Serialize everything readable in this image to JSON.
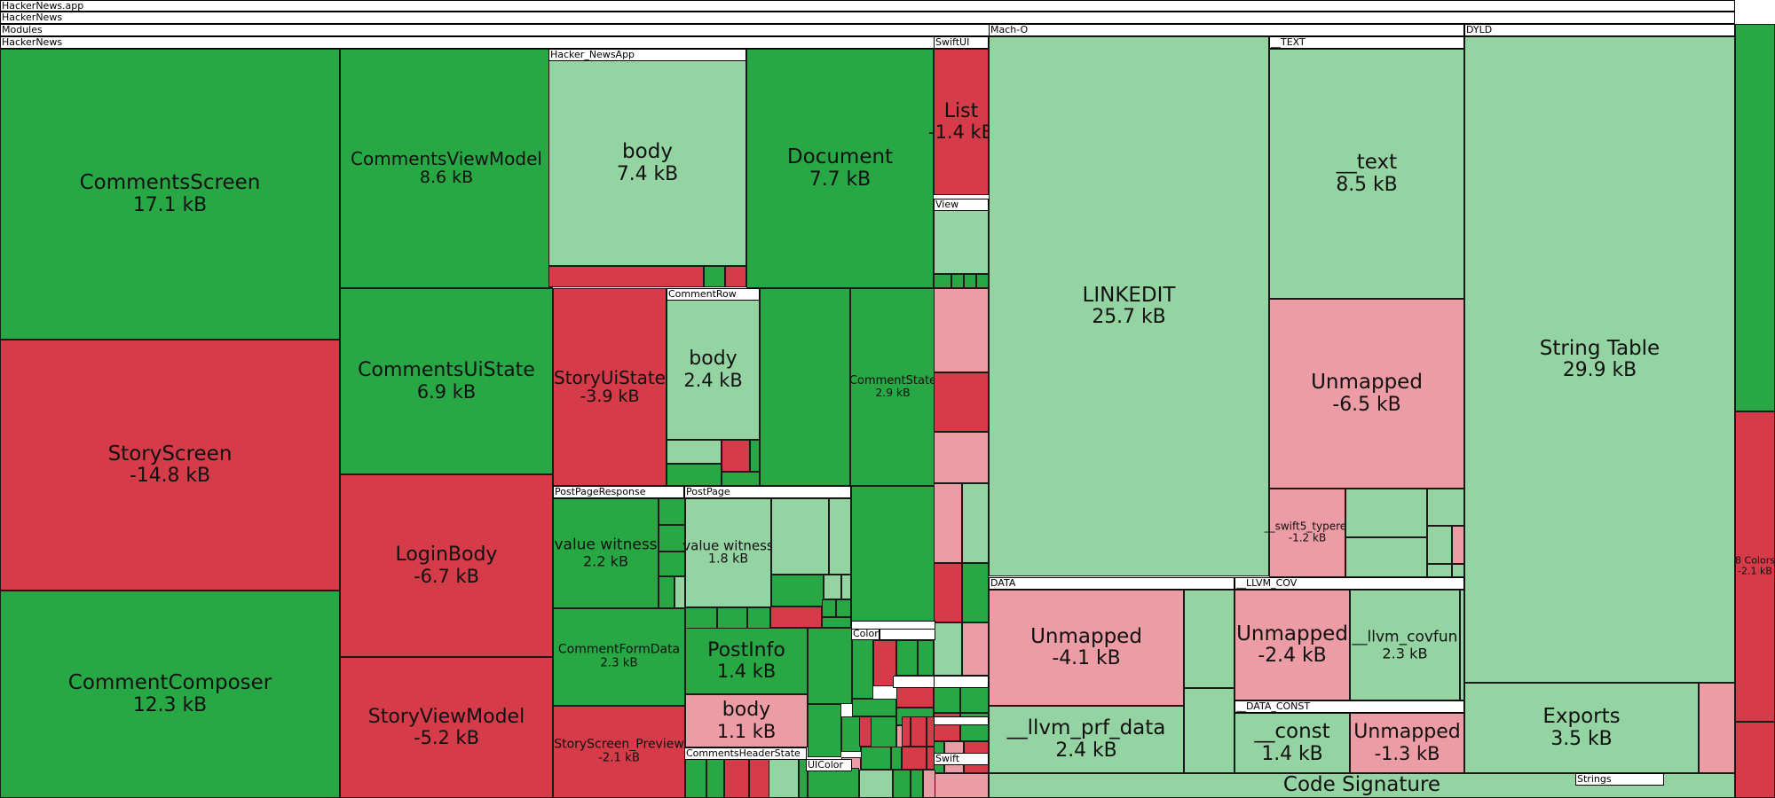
{
  "colors": {
    "shrink_strong": "#d63b49",
    "shrink_light": "#ec9ca4",
    "grow_strong": "#27a844",
    "grow_light": "#94d4a2"
  },
  "breadcrumbs": [
    "HackerNews.app",
    "HackerNews",
    "Modules",
    "HackerNews"
  ],
  "chart_data": {
    "type": "treemap",
    "unit": "kB",
    "items": [
      {
        "name": "CommentsScreen",
        "value": 17.1
      },
      {
        "name": "StoryScreen",
        "value": -14.8
      },
      {
        "name": "CommentComposer",
        "value": 12.3
      },
      {
        "name": "CommentsViewModel",
        "value": 8.6
      },
      {
        "name": "CommentsUiState",
        "value": 6.9
      },
      {
        "name": "LoginBody",
        "value": -6.7
      },
      {
        "name": "StoryViewModel",
        "value": -5.2
      },
      {
        "name": "Hacker_NewsApp body",
        "value": 7.4
      },
      {
        "name": "Document",
        "value": 7.7
      },
      {
        "name": "StoryUiState",
        "value": -3.9
      },
      {
        "name": "CommentRow body",
        "value": 2.4
      },
      {
        "name": "CommentState",
        "value": 2.9
      },
      {
        "name": "PostPageResponse value witness",
        "value": 2.2
      },
      {
        "name": "PostPage value witness",
        "value": 1.8
      },
      {
        "name": "CommentFormData",
        "value": 2.3
      },
      {
        "name": "PostInfo",
        "value": 1.4
      },
      {
        "name": "StoryScreen_Preview",
        "value": -2.1
      },
      {
        "name": "List",
        "value": -1.4
      },
      {
        "name": "LINKEDIT",
        "value": 25.7
      },
      {
        "name": "__text",
        "value": 8.5
      },
      {
        "name": "Unmapped (__TEXT)",
        "value": -6.5
      },
      {
        "name": "__swift5_typeref",
        "value": -1.2
      },
      {
        "name": "String Table",
        "value": 29.9
      },
      {
        "name": "Unmapped (DATA)",
        "value": -4.1
      },
      {
        "name": "__llvm_prf_data",
        "value": 2.4
      },
      {
        "name": "Unmapped (__LLVM_COV)",
        "value": -2.4
      },
      {
        "name": "__llvm_covfun",
        "value": 2.3
      },
      {
        "name": "__const",
        "value": 1.4
      },
      {
        "name": "Unmapped (__DATA_CONST)",
        "value": -1.3
      },
      {
        "name": "Exports",
        "value": 3.5
      },
      {
        "name": "8 Colors",
        "value": -2.1
      }
    ]
  },
  "labels": {
    "comments_screen": {
      "name": "CommentsScreen",
      "size": "17.1 kB"
    },
    "story_screen": {
      "name": "StoryScreen",
      "size": "-14.8 kB"
    },
    "comment_composer": {
      "name": "CommentComposer",
      "size": "12.3 kB"
    },
    "comments_view_model": {
      "name": "CommentsViewModel",
      "size": "8.6 kB"
    },
    "comments_ui_state": {
      "name": "CommentsUiState",
      "size": "6.9 kB"
    },
    "login_body": {
      "name": "LoginBody",
      "size": "-6.7 kB"
    },
    "story_view_model": {
      "name": "StoryViewModel",
      "size": "-5.2 kB"
    },
    "app_body": {
      "name": "body",
      "size": "7.4 kB"
    },
    "document": {
      "name": "Document",
      "size": "7.7 kB"
    },
    "story_ui_state": {
      "name": "StoryUiState",
      "size": "-3.9 kB"
    },
    "comment_row_body": {
      "name": "body",
      "size": "2.4 kB"
    },
    "comment_state": {
      "name": "CommentState",
      "size": "2.9 kB"
    },
    "ppr_value_witness": {
      "name": "value witness",
      "size": "2.2 kB"
    },
    "pp_value_witness": {
      "name": "value witness",
      "size": "1.8 kB"
    },
    "comment_form_data": {
      "name": "CommentFormData",
      "size": "2.3 kB"
    },
    "post_info": {
      "name": "PostInfo",
      "size": "1.4 kB"
    },
    "post_info_body": {
      "name": "body",
      "size": "1.1 kB"
    },
    "story_screen_preview": {
      "name": "StoryScreen_Preview",
      "size": "-2.1 kB"
    },
    "list": {
      "name": "List",
      "size": "-1.4 kB"
    },
    "linkedit": {
      "name": "LINKEDIT",
      "size": "25.7 kB"
    },
    "text": {
      "name": "__text",
      "size": "8.5 kB"
    },
    "text_unmapped": {
      "name": "Unmapped",
      "size": "-6.5 kB"
    },
    "typeref": {
      "name": "__swift5_typeref",
      "size": "-1.2 kB"
    },
    "string_table": {
      "name": "String Table",
      "size": "29.9 kB"
    },
    "data_unmapped": {
      "name": "Unmapped",
      "size": "-4.1 kB"
    },
    "prf_data": {
      "name": "__llvm_prf_data",
      "size": "2.4 kB"
    },
    "cov_unmapped": {
      "name": "Unmapped",
      "size": "-2.4 kB"
    },
    "covfun": {
      "name": "__llvm_covfun",
      "size": "2.3 kB"
    },
    "const": {
      "name": "__const",
      "size": "1.4 kB"
    },
    "const_unmapped": {
      "name": "Unmapped",
      "size": "-1.3 kB"
    },
    "exports": {
      "name": "Exports",
      "size": "3.5 kB"
    },
    "code_signature": {
      "name": "Code Signature",
      "size": ""
    },
    "colors_asset": {
      "name": "8 Colors",
      "size": "-2.1 kB"
    }
  },
  "group_tags": {
    "hacker_newsapp": "Hacker_NewsApp",
    "swiftui": "SwiftUI",
    "view": "View",
    "comment_row": "CommentRow",
    "post_page_response": "PostPageResponse",
    "post_page": "PostPage",
    "comments_header_state": "CommentsHeaderState",
    "color": "Color",
    "uicolor": "UIColor",
    "swift": "Swift",
    "mach_o": "Mach-O",
    "dyld": "DYLD",
    "text_segment": "__TEXT",
    "data_segment": "DATA",
    "llvm_cov": "__LLVM_COV",
    "data_const": "__DATA_CONST",
    "strings": "Strings"
  }
}
